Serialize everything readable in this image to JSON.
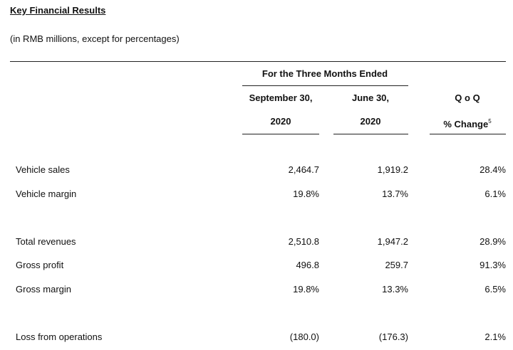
{
  "title": "Key Financial Results",
  "subtitle": "(in RMB millions, except for percentages)",
  "header": {
    "group": "For the Three Months Ended",
    "columns": [
      {
        "lines": [
          "September 30,",
          "2020"
        ]
      },
      {
        "lines": [
          "June 30,",
          "2020"
        ]
      },
      {
        "lines": [
          "Q o Q",
          "% Change"
        ],
        "footnote": "5"
      }
    ]
  },
  "table": {
    "groups": [
      {
        "rows": [
          [
            "Vehicle sales",
            "2,464.7",
            "1,919.2",
            "28.4%"
          ],
          [
            "Vehicle margin",
            "19.8%",
            "13.7%",
            "6.1%"
          ]
        ]
      },
      {
        "rows": [
          [
            "Total revenues",
            "2,510.8",
            "1,947.2",
            "28.9%"
          ],
          [
            "Gross profit",
            "496.8",
            "259.7",
            "91.3%"
          ],
          [
            "Gross margin",
            "19.8%",
            "13.3%",
            "6.5%"
          ]
        ]
      },
      {
        "rows": [
          [
            "Loss from operations",
            "(180.0)",
            "(176.3)",
            "2.1%"
          ]
        ]
      }
    ]
  }
}
